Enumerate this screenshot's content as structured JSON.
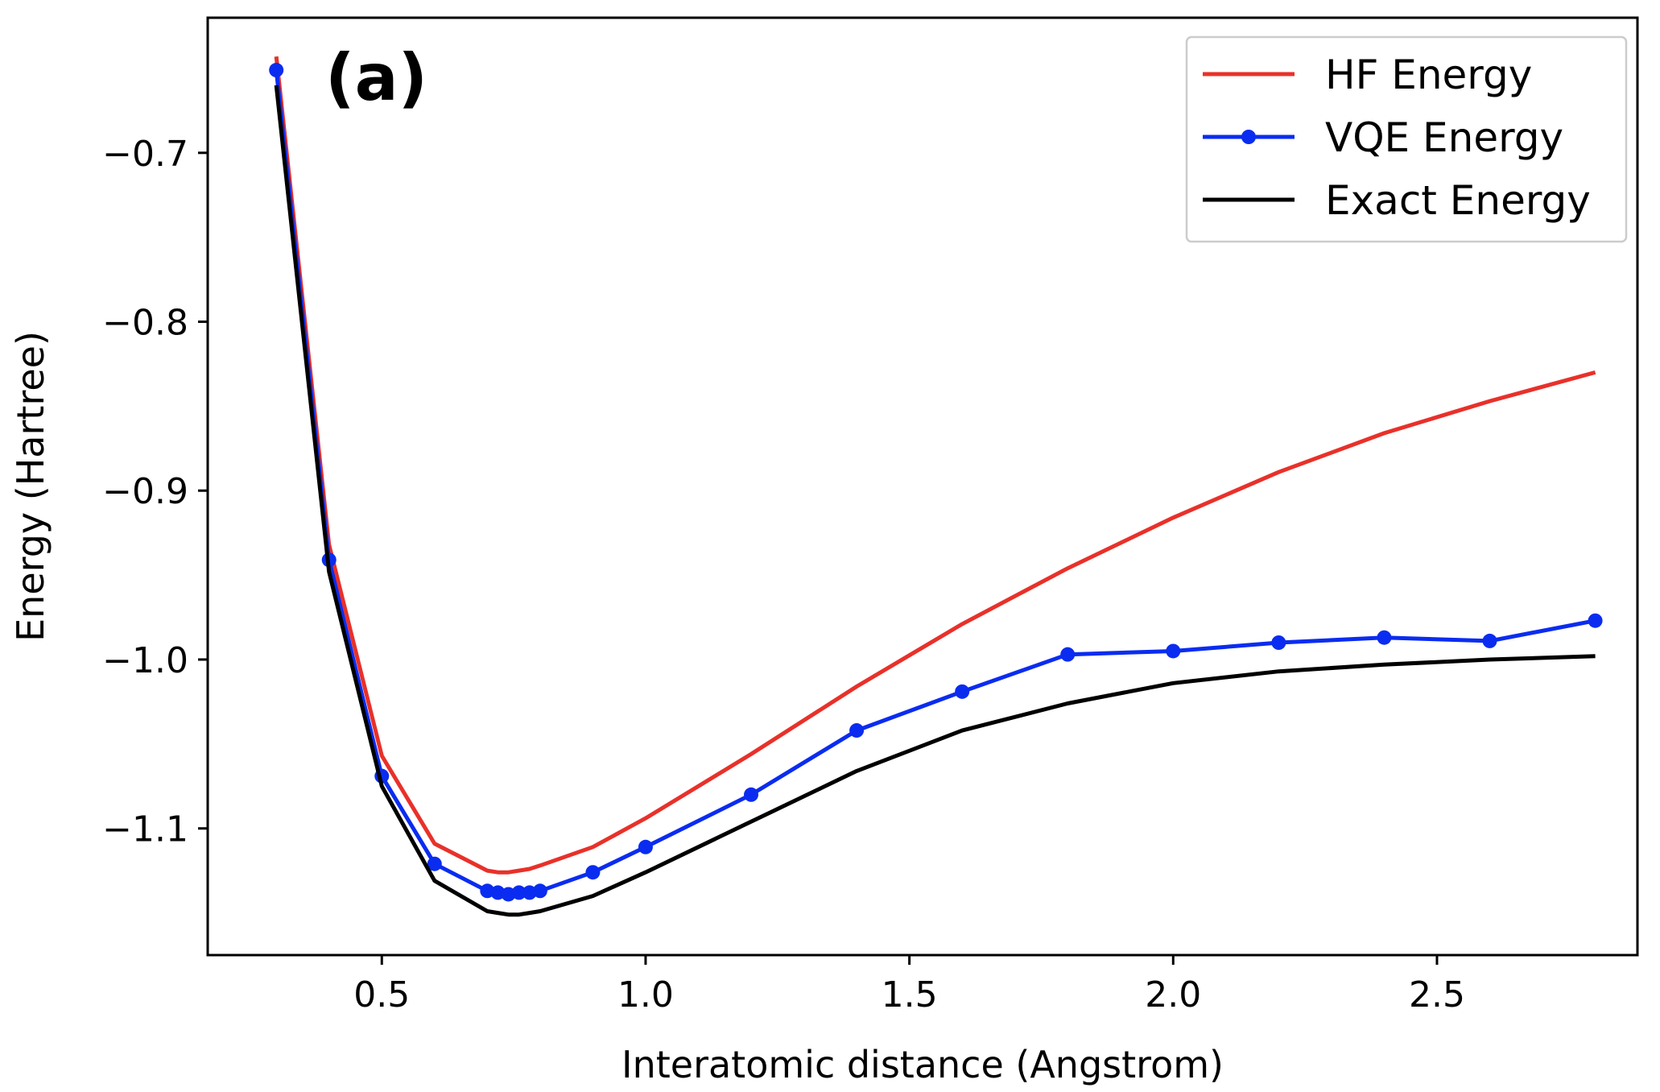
{
  "chart_data": {
    "type": "line",
    "panel_label": "(a)",
    "xlabel": "Interatomic distance (Angstrom)",
    "ylabel": "Energy (Hartree)",
    "xlim": [
      0.17,
      2.88
    ],
    "ylim": [
      -1.175,
      -0.62
    ],
    "xticks": [
      0.5,
      1.0,
      1.5,
      2.0,
      2.5
    ],
    "xtick_labels": [
      "0.5",
      "1.0",
      "1.5",
      "2.0",
      "2.5"
    ],
    "yticks": [
      -0.7,
      -0.8,
      -0.9,
      -1.0,
      -1.1
    ],
    "ytick_labels": [
      "−0.7",
      "−0.8",
      "−0.9",
      "−1.0",
      "−1.1"
    ],
    "legend_position": "top-right",
    "series": [
      {
        "name": "HF Energy",
        "color": "#e8312a",
        "marker": false,
        "x": [
          0.3,
          0.4,
          0.5,
          0.6,
          0.7,
          0.72,
          0.74,
          0.76,
          0.78,
          0.8,
          0.9,
          1.0,
          1.2,
          1.4,
          1.6,
          1.8,
          2.0,
          2.2,
          2.4,
          2.6,
          2.8
        ],
        "y": [
          -0.643,
          -0.932,
          -1.057,
          -1.109,
          -1.125,
          -1.126,
          -1.126,
          -1.125,
          -1.124,
          -1.122,
          -1.111,
          -1.094,
          -1.056,
          -1.016,
          -0.979,
          -0.946,
          -0.916,
          -0.889,
          -0.866,
          -0.847,
          -0.83
        ]
      },
      {
        "name": "VQE Energy",
        "color": "#0a2cf0",
        "marker": true,
        "x": [
          0.3,
          0.4,
          0.5,
          0.6,
          0.7,
          0.72,
          0.74,
          0.76,
          0.78,
          0.8,
          0.9,
          1.0,
          1.2,
          1.4,
          1.6,
          1.8,
          2.0,
          2.2,
          2.4,
          2.6,
          2.8
        ],
        "y": [
          -0.651,
          -0.941,
          -1.069,
          -1.121,
          -1.137,
          -1.138,
          -1.139,
          -1.138,
          -1.138,
          -1.137,
          -1.126,
          -1.111,
          -1.08,
          -1.042,
          -1.019,
          -0.997,
          -0.995,
          -0.99,
          -0.987,
          -0.989,
          -0.977
        ]
      },
      {
        "name": "Exact Energy",
        "color": "#000000",
        "marker": false,
        "x": [
          0.3,
          0.4,
          0.5,
          0.6,
          0.7,
          0.72,
          0.74,
          0.76,
          0.78,
          0.8,
          0.9,
          1.0,
          1.2,
          1.4,
          1.6,
          1.8,
          2.0,
          2.2,
          2.4,
          2.6,
          2.8
        ],
        "y": [
          -0.66,
          -0.948,
          -1.075,
          -1.131,
          -1.149,
          -1.15,
          -1.151,
          -1.151,
          -1.15,
          -1.149,
          -1.14,
          -1.126,
          -1.096,
          -1.066,
          -1.042,
          -1.026,
          -1.014,
          -1.007,
          -1.003,
          -1.0,
          -0.998
        ]
      }
    ]
  }
}
